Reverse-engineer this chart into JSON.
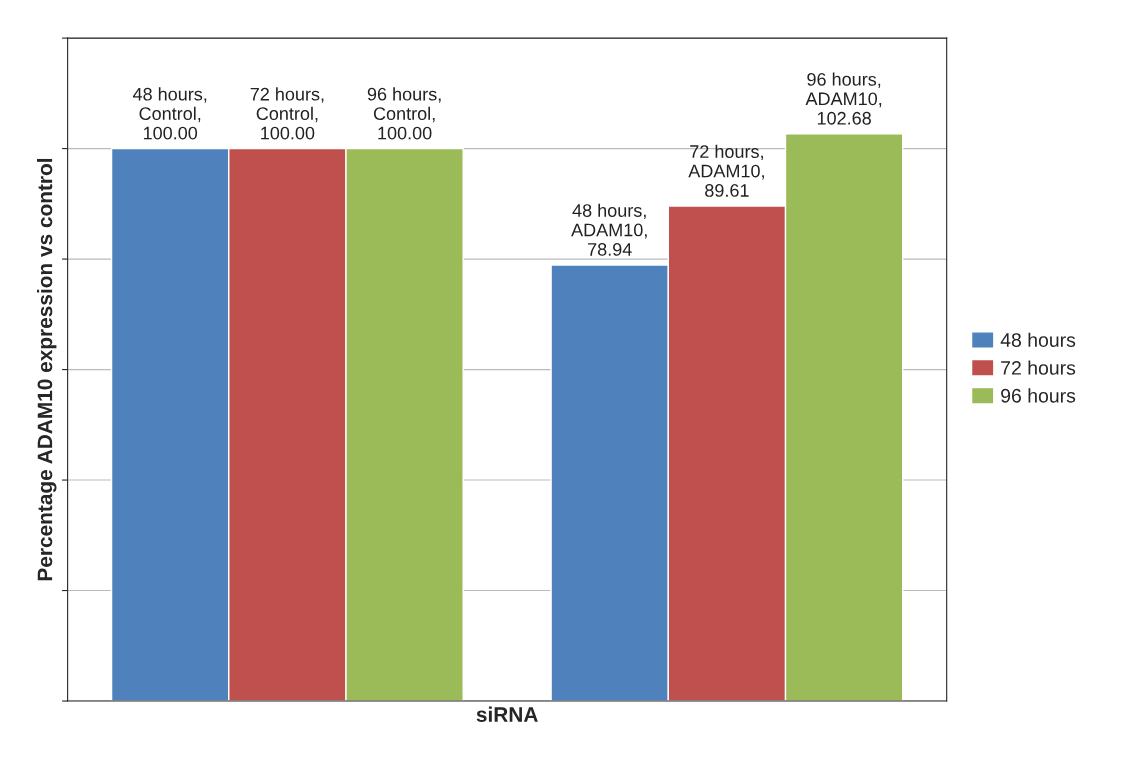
{
  "chart_data": {
    "type": "bar",
    "xlabel": "siRNA",
    "ylabel": "Percentage ADAM10 expression vs control",
    "categories": [
      null,
      null
    ],
    "series": [
      {
        "name": "48 hours",
        "color": "#4f81bd",
        "values": [
          100.0,
          78.94
        ],
        "value_labels": [
          "48 hours, Control, 100.00",
          "48 hours, ADAM10, 78.94"
        ]
      },
      {
        "name": "72 hours",
        "color": "#c0504d",
        "values": [
          100.0,
          89.61
        ],
        "value_labels": [
          "72 hours, Control, 100.00",
          "72 hours, ADAM10, 89.61"
        ]
      },
      {
        "name": "96 hours",
        "color": "#9bbb59",
        "values": [
          100.0,
          102.68
        ],
        "value_labels": [
          "96 hours, Control, 100.00",
          "96 hours, ADAM10, 102.68"
        ]
      }
    ],
    "ylim": [
      0,
      120
    ],
    "yticks": [
      {
        "value": 0,
        "label": null
      },
      {
        "value": 20,
        "label": null
      },
      {
        "value": 40,
        "label": null
      },
      {
        "value": 60,
        "label": null
      },
      {
        "value": 80,
        "label": null
      },
      {
        "value": 100,
        "label": null
      },
      {
        "value": 120,
        "label": null
      }
    ],
    "grid": "y",
    "legend": "right",
    "tick_labels": false
  }
}
